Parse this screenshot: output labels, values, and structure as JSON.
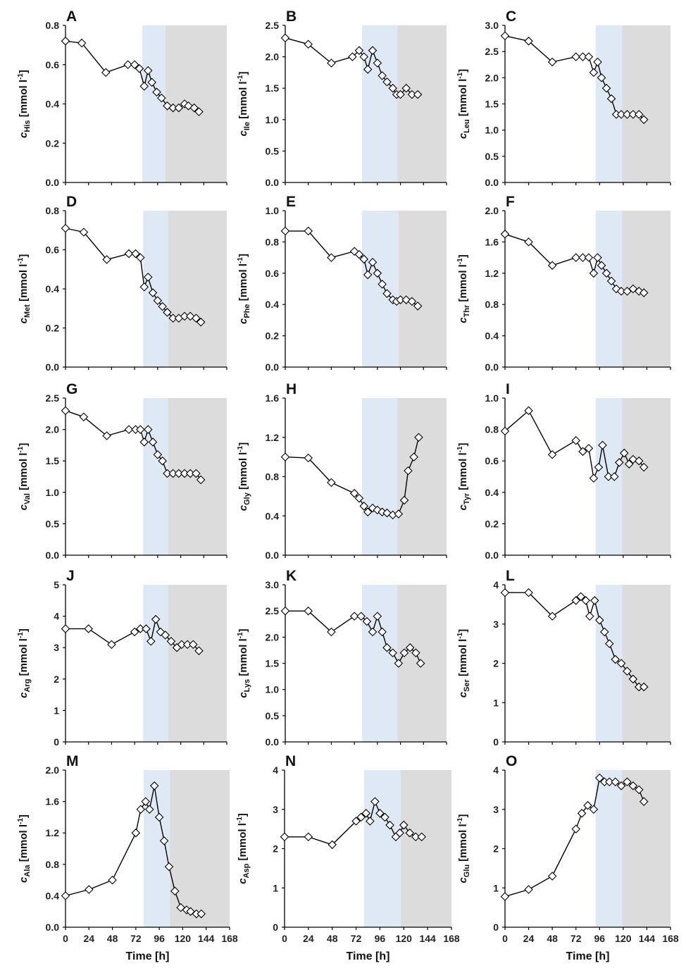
{
  "figure": {
    "time_axis_label": "Time [h]",
    "ylabel_prefix": "c",
    "ylabel_unit_text": " [mmol l",
    "ylabel_unit_exponent": "-1",
    "ylabel_unit_close": "]",
    "x_ticks": [
      "0",
      "24",
      "48",
      "72",
      "96",
      "120",
      "144",
      "168"
    ],
    "colors": {
      "phase_blue": "#dfe9f5",
      "phase_grey": "#dcdcdc",
      "line": "#000000",
      "marker_fill": "#ffffff"
    }
  },
  "chart_data": [
    {
      "type": "line",
      "panel": "A",
      "species": "His",
      "xlim": [
        0,
        168
      ],
      "ylim": [
        0,
        0.8
      ],
      "yticks": [
        "0.0",
        "0.2",
        "0.4",
        "0.6",
        "0.8"
      ],
      "shaded": {
        "blue": [
          80,
          104
        ],
        "grey": [
          104,
          168
        ]
      },
      "x": [
        0,
        17,
        42,
        65,
        72,
        77,
        82,
        86,
        90,
        95,
        100,
        106,
        112,
        118,
        124,
        128,
        134,
        139
      ],
      "y": [
        0.72,
        0.71,
        0.56,
        0.6,
        0.6,
        0.58,
        0.49,
        0.57,
        0.51,
        0.46,
        0.43,
        0.39,
        0.38,
        0.38,
        0.4,
        0.39,
        0.38,
        0.36
      ]
    },
    {
      "type": "line",
      "panel": "B",
      "species": "Ile",
      "xlim": [
        0,
        168
      ],
      "ylim": [
        0,
        2.5
      ],
      "yticks": [
        "0.0",
        "0.5",
        "1.0",
        "1.5",
        "2.0",
        "2.5"
      ],
      "shaded": {
        "blue": [
          80,
          117
        ],
        "grey": [
          117,
          168
        ]
      },
      "x": [
        0,
        24,
        48,
        70,
        77,
        82,
        86,
        91,
        96,
        101,
        106,
        112,
        116,
        120,
        126,
        132,
        138
      ],
      "y": [
        2.3,
        2.2,
        1.9,
        2.0,
        2.1,
        2.0,
        1.8,
        2.1,
        1.9,
        1.7,
        1.6,
        1.5,
        1.4,
        1.4,
        1.5,
        1.4,
        1.4
      ]
    },
    {
      "type": "line",
      "panel": "C",
      "species": "Leu",
      "xlim": [
        0,
        168
      ],
      "ylim": [
        0,
        3.0
      ],
      "yticks": [
        "0.0",
        "0.5",
        "1.0",
        "1.5",
        "2.0",
        "2.5",
        "3.0"
      ],
      "shaded": {
        "blue": [
          92,
          119
        ],
        "grey": [
          119,
          168
        ]
      },
      "x": [
        0,
        24,
        48,
        72,
        79,
        85,
        90,
        94,
        98,
        103,
        108,
        113,
        118,
        124,
        130,
        136,
        141
      ],
      "y": [
        2.8,
        2.7,
        2.3,
        2.4,
        2.4,
        2.4,
        2.1,
        2.3,
        2.0,
        1.8,
        1.6,
        1.3,
        1.3,
        1.3,
        1.3,
        1.3,
        1.2
      ]
    },
    {
      "type": "line",
      "panel": "D",
      "species": "Met",
      "xlim": [
        0,
        168
      ],
      "ylim": [
        0,
        0.8
      ],
      "yticks": [
        "0.0",
        "0.2",
        "0.4",
        "0.6",
        "0.8"
      ],
      "shaded": {
        "blue": [
          81,
          107
        ],
        "grey": [
          107,
          168
        ]
      },
      "x": [
        0,
        19,
        43,
        66,
        73,
        78,
        82,
        86,
        91,
        96,
        101,
        106,
        112,
        118,
        124,
        130,
        136,
        141
      ],
      "y": [
        0.71,
        0.69,
        0.55,
        0.58,
        0.58,
        0.56,
        0.41,
        0.46,
        0.38,
        0.34,
        0.31,
        0.28,
        0.25,
        0.25,
        0.26,
        0.26,
        0.25,
        0.23
      ]
    },
    {
      "type": "line",
      "panel": "E",
      "species": "Phe",
      "xlim": [
        0,
        168
      ],
      "ylim": [
        0,
        1.0
      ],
      "yticks": [
        "0.0",
        "0.2",
        "0.4",
        "0.6",
        "0.8",
        "1.0"
      ],
      "shaded": {
        "blue": [
          80,
          118
        ],
        "grey": [
          118,
          168
        ]
      },
      "x": [
        0,
        24,
        48,
        72,
        77,
        82,
        86,
        91,
        96,
        101,
        106,
        112,
        116,
        120,
        126,
        132,
        138
      ],
      "y": [
        0.87,
        0.87,
        0.7,
        0.74,
        0.72,
        0.69,
        0.59,
        0.67,
        0.6,
        0.53,
        0.47,
        0.43,
        0.42,
        0.43,
        0.43,
        0.42,
        0.39
      ]
    },
    {
      "type": "line",
      "panel": "F",
      "species": "Thr",
      "xlim": [
        0,
        168
      ],
      "ylim": [
        0,
        2.0
      ],
      "yticks": [
        "0.0",
        "0.4",
        "0.8",
        "1.2",
        "1.6",
        "2.0"
      ],
      "shaded": {
        "blue": [
          92,
          119
        ],
        "grey": [
          119,
          168
        ]
      },
      "x": [
        0,
        24,
        48,
        72,
        79,
        85,
        90,
        94,
        98,
        103,
        108,
        113,
        118,
        124,
        130,
        136,
        141
      ],
      "y": [
        1.7,
        1.6,
        1.3,
        1.4,
        1.4,
        1.4,
        1.2,
        1.4,
        1.3,
        1.2,
        1.1,
        1.0,
        0.97,
        0.97,
        1.0,
        0.97,
        0.95
      ]
    },
    {
      "type": "line",
      "panel": "G",
      "species": "Val",
      "xlim": [
        0,
        168
      ],
      "ylim": [
        0,
        2.5
      ],
      "yticks": [
        "0.0",
        "0.5",
        "1.0",
        "1.5",
        "2.0",
        "2.5"
      ],
      "shaded": {
        "blue": [
          81,
          107
        ],
        "grey": [
          107,
          168
        ]
      },
      "x": [
        0,
        19,
        43,
        66,
        73,
        78,
        82,
        86,
        91,
        96,
        101,
        106,
        112,
        118,
        124,
        130,
        136,
        141
      ],
      "y": [
        2.3,
        2.2,
        1.9,
        2.0,
        2.0,
        2.0,
        1.8,
        2.0,
        1.8,
        1.6,
        1.5,
        1.3,
        1.3,
        1.3,
        1.3,
        1.3,
        1.3,
        1.2
      ]
    },
    {
      "type": "line",
      "panel": "H",
      "species": "Gly",
      "xlim": [
        0,
        168
      ],
      "ylim": [
        0,
        1.6
      ],
      "yticks": [
        "0.0",
        "0.4",
        "0.8",
        "1.2",
        "1.6"
      ],
      "shaded": {
        "blue": [
          80,
          117
        ],
        "grey": [
          117,
          168
        ]
      },
      "x": [
        0,
        24,
        48,
        72,
        77,
        82,
        86,
        91,
        96,
        101,
        106,
        112,
        118,
        124,
        128,
        134,
        139
      ],
      "y": [
        1.0,
        0.99,
        0.74,
        0.63,
        0.58,
        0.5,
        0.44,
        0.48,
        0.46,
        0.44,
        0.43,
        0.41,
        0.42,
        0.56,
        0.86,
        1.0,
        1.2
      ]
    },
    {
      "type": "line",
      "panel": "I",
      "species": "Tyr",
      "xlim": [
        0,
        168
      ],
      "ylim": [
        0,
        1.0
      ],
      "yticks": [
        "0.0",
        "0.2",
        "0.4",
        "0.6",
        "0.8",
        "1.0"
      ],
      "shaded": {
        "blue": [
          92,
          119
        ],
        "grey": [
          119,
          168
        ]
      },
      "x": [
        0,
        24,
        48,
        72,
        79,
        85,
        90,
        95,
        99,
        105,
        111,
        116,
        121,
        126,
        130,
        136,
        141
      ],
      "y": [
        0.79,
        0.92,
        0.64,
        0.73,
        0.66,
        0.68,
        0.49,
        0.56,
        0.7,
        0.5,
        0.5,
        0.59,
        0.65,
        0.58,
        0.61,
        0.6,
        0.56
      ]
    },
    {
      "type": "line",
      "panel": "J",
      "species": "Arg",
      "xlim": [
        0,
        168
      ],
      "ylim": [
        0,
        5
      ],
      "yticks": [
        "0",
        "1",
        "2",
        "3",
        "4",
        "5"
      ],
      "shaded": {
        "blue": [
          81,
          107
        ],
        "grey": [
          107,
          168
        ]
      },
      "x": [
        0,
        24,
        48,
        72,
        78,
        84,
        89,
        94,
        99,
        104,
        110,
        116,
        121,
        127,
        133,
        139
      ],
      "y": [
        3.6,
        3.6,
        3.1,
        3.5,
        3.6,
        3.6,
        3.2,
        3.9,
        3.5,
        3.4,
        3.2,
        3.0,
        3.1,
        3.1,
        3.1,
        2.9
      ]
    },
    {
      "type": "line",
      "panel": "K",
      "species": "Lys",
      "xlim": [
        0,
        168
      ],
      "ylim": [
        0,
        3.0
      ],
      "yticks": [
        "0.0",
        "0.5",
        "1.0",
        "1.5",
        "2.0",
        "2.5",
        "3.0"
      ],
      "shaded": {
        "blue": [
          80,
          117
        ],
        "grey": [
          117,
          168
        ]
      },
      "x": [
        0,
        24,
        48,
        72,
        79,
        85,
        91,
        96,
        101,
        106,
        112,
        118,
        124,
        130,
        136,
        141
      ],
      "y": [
        2.5,
        2.5,
        2.1,
        2.4,
        2.4,
        2.3,
        2.1,
        2.4,
        2.1,
        1.8,
        1.7,
        1.5,
        1.7,
        1.8,
        1.7,
        1.5
      ]
    },
    {
      "type": "line",
      "panel": "L",
      "species": "Ser",
      "xlim": [
        0,
        168
      ],
      "ylim": [
        0,
        4
      ],
      "yticks": [
        "0",
        "1",
        "2",
        "3",
        "4"
      ],
      "shaded": {
        "blue": [
          92,
          119
        ],
        "grey": [
          119,
          168
        ]
      },
      "x": [
        0,
        24,
        48,
        72,
        77,
        82,
        86,
        91,
        96,
        101,
        106,
        112,
        118,
        124,
        130,
        136,
        141
      ],
      "y": [
        3.8,
        3.8,
        3.2,
        3.6,
        3.7,
        3.6,
        3.2,
        3.6,
        3.1,
        2.8,
        2.5,
        2.1,
        2.0,
        1.8,
        1.6,
        1.4,
        1.4
      ]
    },
    {
      "type": "line",
      "panel": "M",
      "species": "Ala",
      "xlim": [
        0,
        168
      ],
      "ylim": [
        0,
        2.0
      ],
      "yticks": [
        "0.0",
        "0.4",
        "0.8",
        "1.2",
        "1.6",
        "2.0"
      ],
      "shaded": {
        "blue": [
          80,
          107
        ],
        "grey": [
          107,
          168
        ]
      },
      "x": [
        0,
        24,
        48,
        72,
        77,
        82,
        86,
        91,
        96,
        101,
        106,
        112,
        118,
        124,
        128,
        134,
        139
      ],
      "y": [
        0.4,
        0.48,
        0.6,
        1.2,
        1.5,
        1.6,
        1.5,
        1.8,
        1.4,
        1.1,
        0.77,
        0.46,
        0.25,
        0.22,
        0.2,
        0.17,
        0.17
      ]
    },
    {
      "type": "line",
      "panel": "N",
      "species": "Asp",
      "xlim": [
        0,
        168
      ],
      "ylim": [
        0,
        4
      ],
      "yticks": [
        "0",
        "1",
        "2",
        "3",
        "4"
      ],
      "shaded": {
        "blue": [
          80,
          117
        ],
        "grey": [
          117,
          168
        ]
      },
      "x": [
        0,
        24,
        48,
        72,
        77,
        82,
        86,
        91,
        96,
        101,
        106,
        112,
        116,
        120,
        126,
        132,
        138
      ],
      "y": [
        2.3,
        2.3,
        2.1,
        2.7,
        2.8,
        2.9,
        2.7,
        3.2,
        2.9,
        2.8,
        2.6,
        2.3,
        2.4,
        2.6,
        2.4,
        2.3,
        2.3
      ]
    },
    {
      "type": "line",
      "panel": "O",
      "species": "Glu",
      "xlim": [
        0,
        168
      ],
      "ylim": [
        0,
        4
      ],
      "yticks": [
        "0",
        "1",
        "2",
        "3",
        "4"
      ],
      "shaded": {
        "blue": [
          92,
          119
        ],
        "grey": [
          119,
          168
        ]
      },
      "x": [
        0,
        24,
        48,
        72,
        78,
        84,
        90,
        96,
        101,
        106,
        112,
        118,
        124,
        130,
        136,
        141
      ],
      "y": [
        0.78,
        0.96,
        1.3,
        2.5,
        2.9,
        3.1,
        3.0,
        3.8,
        3.7,
        3.7,
        3.7,
        3.6,
        3.7,
        3.6,
        3.5,
        3.2
      ]
    }
  ]
}
